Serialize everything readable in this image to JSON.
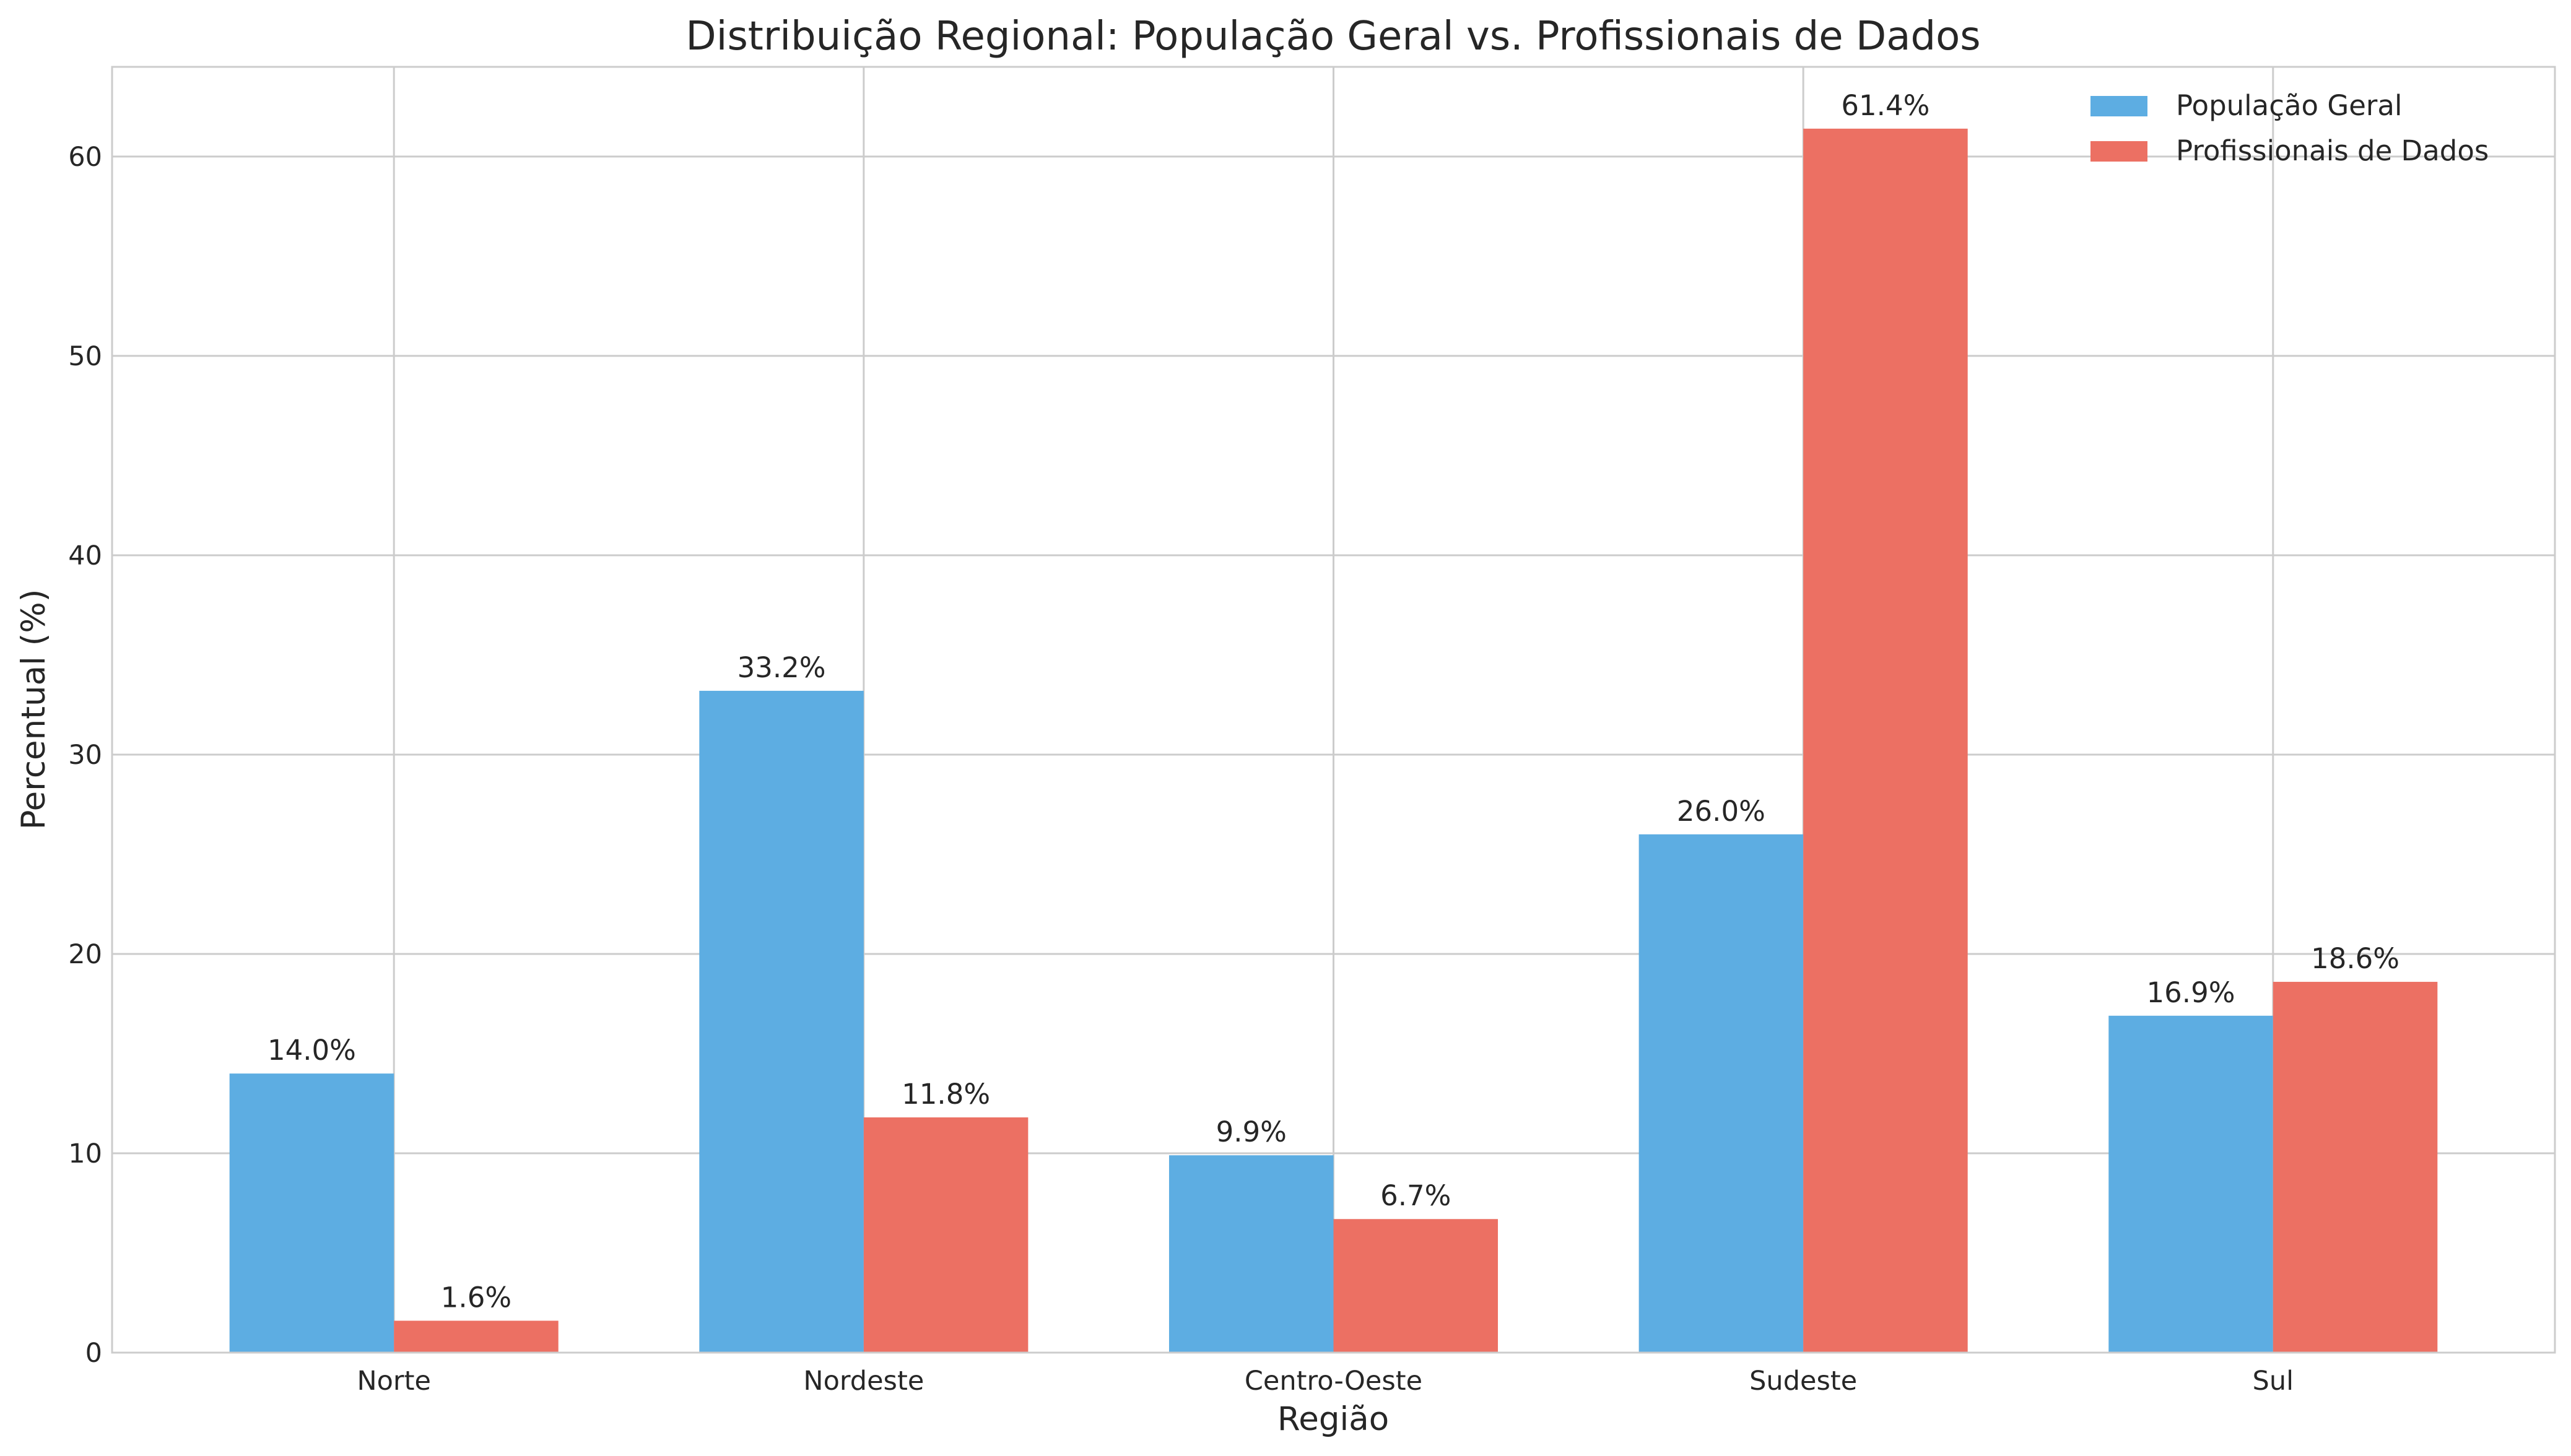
{
  "chart_data": {
    "type": "bar",
    "title": "Distribuição Regional: População Geral vs. Profissionais de Dados",
    "xlabel": "Região",
    "ylabel": "Percentual (%)",
    "categories": [
      "Norte",
      "Nordeste",
      "Centro-Oeste",
      "Sudeste",
      "Sul"
    ],
    "series": [
      {
        "name": "População Geral",
        "color": "#5DADE2",
        "values": [
          14.0,
          33.2,
          9.9,
          26.0,
          16.9
        ],
        "labels": [
          "14.0%",
          "33.2%",
          "9.9%",
          "26.0%",
          "16.9%"
        ]
      },
      {
        "name": "Profissionais de Dados",
        "color": "#EC7063",
        "values": [
          1.6,
          11.8,
          6.7,
          61.4,
          18.6
        ],
        "labels": [
          "1.6%",
          "11.8%",
          "6.7%",
          "61.4%",
          "18.6%"
        ]
      }
    ],
    "ylim": [
      0,
      64.5
    ],
    "yticks": [
      0,
      10,
      20,
      30,
      40,
      50,
      60
    ],
    "ytick_labels": [
      "0",
      "10",
      "20",
      "30",
      "40",
      "50",
      "60"
    ],
    "grid": true,
    "legend_position": "top-right"
  }
}
